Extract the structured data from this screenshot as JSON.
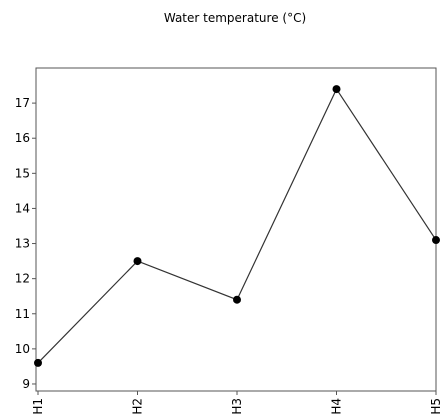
{
  "chart_data": {
    "type": "line",
    "title": "Water temperature (°C)",
    "xlabel": "",
    "ylabel": "",
    "categories": [
      "H1",
      "H2",
      "H3",
      "H4",
      "H5"
    ],
    "values": [
      9.6,
      12.5,
      11.4,
      17.4,
      13.1
    ],
    "ylim": [
      8.8,
      18
    ],
    "yticks": [
      9,
      10,
      11,
      12,
      13,
      14,
      15,
      16,
      17
    ],
    "grid": false,
    "legend": "none",
    "colors": {
      "line": "#333333",
      "marker": "#000000",
      "axis": "#555555"
    }
  }
}
